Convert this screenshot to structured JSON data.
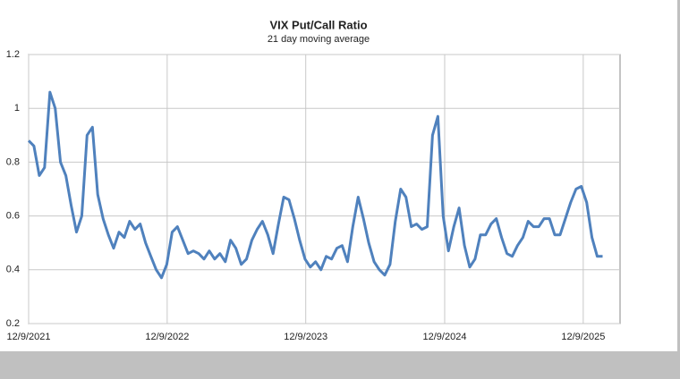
{
  "chart_data": {
    "type": "line",
    "title": "VIX Put/Call Ratio",
    "subtitle": "21 day moving average",
    "x": [
      "12/9/2021",
      "12/23/2021",
      "1/6/2022",
      "1/20/2022",
      "2/3/2022",
      "2/17/2022",
      "3/3/2022",
      "3/17/2022",
      "3/31/2022",
      "4/14/2022",
      "4/28/2022",
      "5/12/2022",
      "5/26/2022",
      "6/9/2022",
      "6/23/2022",
      "7/7/2022",
      "7/21/2022",
      "8/4/2022",
      "8/18/2022",
      "9/1/2022",
      "9/15/2022",
      "9/29/2022",
      "10/13/2022",
      "10/27/2022",
      "11/10/2022",
      "11/24/2022",
      "12/8/2022",
      "12/22/2022",
      "1/5/2023",
      "1/19/2023",
      "2/2/2023",
      "2/16/2023",
      "3/2/2023",
      "3/16/2023",
      "3/30/2023",
      "4/13/2023",
      "4/27/2023",
      "5/11/2023",
      "5/25/2023",
      "6/8/2023",
      "6/22/2023",
      "7/6/2023",
      "7/20/2023",
      "8/3/2023",
      "8/17/2023",
      "8/31/2023",
      "9/14/2023",
      "9/28/2023",
      "10/12/2023",
      "10/26/2023",
      "11/9/2023",
      "11/23/2023",
      "12/7/2023",
      "12/21/2023",
      "1/4/2024",
      "1/18/2024",
      "2/1/2024",
      "2/15/2024",
      "2/29/2024",
      "3/14/2024",
      "3/28/2024",
      "4/11/2024",
      "4/25/2024",
      "5/9/2024",
      "5/23/2024",
      "6/6/2024",
      "6/20/2024",
      "7/4/2024",
      "7/18/2024",
      "8/1/2024",
      "8/15/2024",
      "8/29/2024",
      "9/12/2024",
      "9/26/2024",
      "10/10/2024",
      "10/24/2024",
      "11/7/2024",
      "11/21/2024",
      "12/5/2024",
      "12/19/2024",
      "1/2/2025",
      "1/16/2025",
      "1/30/2025",
      "2/13/2025",
      "2/27/2025",
      "3/13/2025",
      "3/27/2025",
      "4/10/2025",
      "4/24/2025",
      "5/8/2025",
      "5/22/2025",
      "6/5/2025",
      "6/19/2025",
      "7/3/2025",
      "7/17/2025",
      "7/31/2025",
      "8/14/2025",
      "8/28/2025",
      "9/11/2025",
      "9/25/2025",
      "10/9/2025",
      "10/23/2025",
      "11/6/2025",
      "11/20/2025",
      "12/4/2025",
      "12/18/2025",
      "1/1/2026",
      "1/15/2026",
      "1/29/2026"
    ],
    "series": [
      {
        "name": "VIX Put/Call Ratio",
        "color": "#4f81bd",
        "values": [
          0.88,
          0.86,
          0.75,
          0.78,
          1.06,
          1.0,
          0.8,
          0.75,
          0.64,
          0.54,
          0.6,
          0.9,
          0.93,
          0.68,
          0.59,
          0.53,
          0.48,
          0.54,
          0.52,
          0.58,
          0.55,
          0.57,
          0.5,
          0.45,
          0.4,
          0.37,
          0.42,
          0.54,
          0.56,
          0.51,
          0.46,
          0.47,
          0.46,
          0.44,
          0.47,
          0.44,
          0.46,
          0.43,
          0.51,
          0.48,
          0.42,
          0.44,
          0.51,
          0.55,
          0.58,
          0.53,
          0.46,
          0.57,
          0.67,
          0.66,
          0.59,
          0.51,
          0.44,
          0.41,
          0.43,
          0.4,
          0.45,
          0.44,
          0.48,
          0.49,
          0.43,
          0.56,
          0.67,
          0.59,
          0.5,
          0.43,
          0.4,
          0.38,
          0.42,
          0.58,
          0.7,
          0.67,
          0.56,
          0.57,
          0.55,
          0.56,
          0.9,
          0.97,
          0.6,
          0.47,
          0.56,
          0.63,
          0.49,
          0.41,
          0.44,
          0.53,
          0.53,
          0.57,
          0.59,
          0.52,
          0.46,
          0.45,
          0.49,
          0.52,
          0.58,
          0.56,
          0.56,
          0.59,
          0.59,
          0.53,
          0.53,
          0.59,
          0.65,
          0.7,
          0.71,
          0.65,
          0.52,
          0.45,
          0.45
        ]
      }
    ],
    "xlim": [
      "12/9/2021",
      "3/16/2026"
    ],
    "xticks": [
      "12/9/2021",
      "12/9/2022",
      "12/9/2023",
      "12/9/2024",
      "12/9/2025"
    ],
    "ylim": [
      0.2,
      1.2
    ],
    "yticks": [
      0.2,
      0.4,
      0.6,
      0.8,
      1,
      1.2
    ],
    "grid": true
  }
}
